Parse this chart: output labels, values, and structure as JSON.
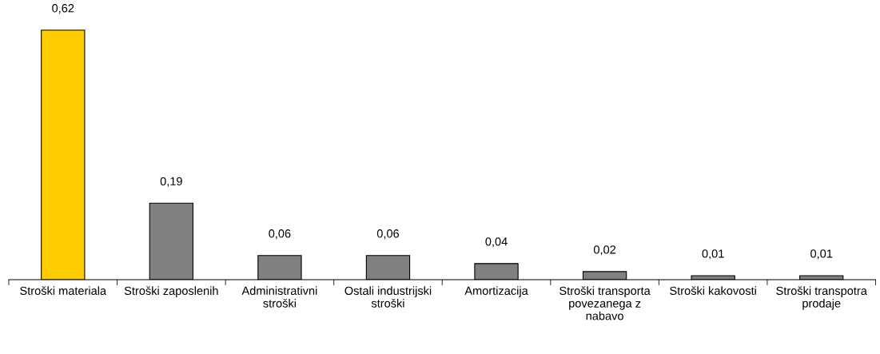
{
  "chart_data": {
    "type": "bar",
    "categories": [
      "Stroški materiala",
      "Stroški zaposlenih",
      "Administrativni\nstroški",
      "Ostali industrijski\nstroški",
      "Amortizacija",
      "Stroški transporta\npovezanega z\nnabavo",
      "Stroški kakovosti",
      "Stroški transpotra\nprodaje"
    ],
    "values": [
      0.62,
      0.19,
      0.06,
      0.06,
      0.04,
      0.02,
      0.01,
      0.01
    ],
    "value_labels": [
      "0,62",
      "0,19",
      "0,06",
      "0,06",
      "0,04",
      "0,02",
      "0,01",
      "0,01"
    ],
    "colors": [
      "#ffcc00",
      "#808080",
      "#808080",
      "#808080",
      "#808080",
      "#808080",
      "#808080",
      "#808080"
    ],
    "tick_labels": "x",
    "grid": false
  }
}
